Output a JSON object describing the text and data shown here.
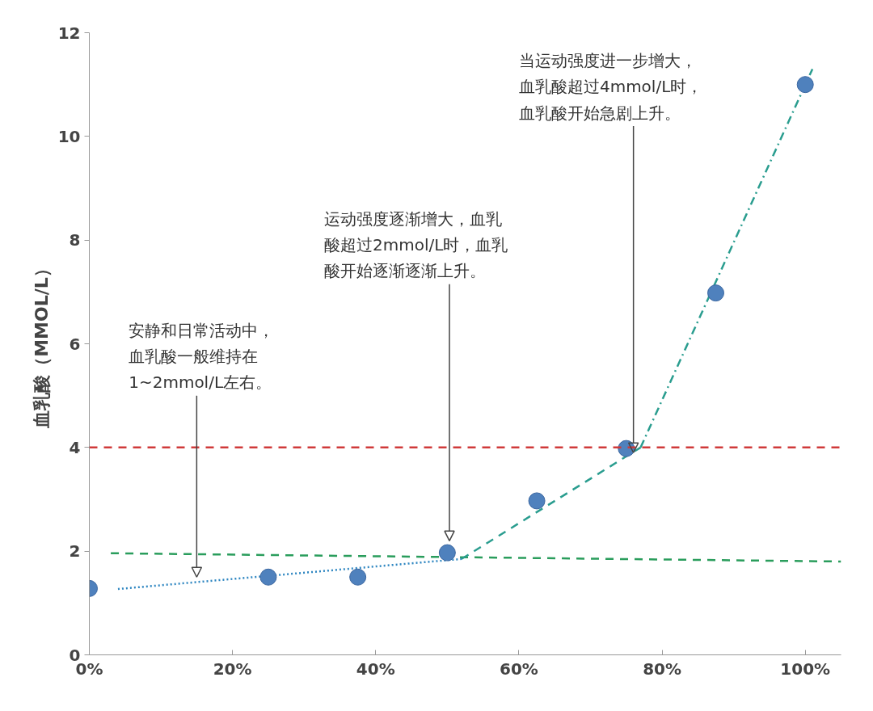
{
  "chart_data": {
    "type": "scatter",
    "ylabel": "血乳酸（MMOL/L）",
    "x": [
      0,
      25,
      37.5,
      50,
      62.5,
      75,
      87.5,
      100
    ],
    "series": [
      {
        "marker": "circle",
        "color": "#4f81bd",
        "values": [
          1.28,
          1.5,
          1.5,
          1.97,
          2.97,
          3.98,
          6.98,
          11.0
        ]
      },
      {
        "type": "line",
        "color": "#2a9d5c",
        "line_style": "dashed",
        "x": [
          3,
          105
        ],
        "values": [
          1.96,
          1.8
        ]
      },
      {
        "type": "line",
        "color": "#2e86c1",
        "line_style": "dotted",
        "x": [
          4,
          52
        ],
        "values": [
          1.27,
          1.85
        ]
      },
      {
        "type": "line",
        "color": "#2a9d8f",
        "line_style": "dashed",
        "x": [
          52,
          77
        ],
        "values": [
          1.85,
          4.0
        ]
      },
      {
        "type": "line",
        "color": "#2a9d8f",
        "line_style": "dashdot",
        "x": [
          77,
          101
        ],
        "values": [
          4.0,
          11.3
        ]
      }
    ],
    "ref_lines": [
      {
        "axis": "y",
        "value": 4,
        "color": "#d03a3a",
        "line_style": "dashed"
      }
    ],
    "annotations": [
      {
        "text": "安静和日常活动中，血乳酸一般维持在1~2mmol/L左右。",
        "x": 15,
        "y": 1.5
      },
      {
        "text": "运动强度逐渐增大，血乳酸超过2mmol/L时，血乳酸开始逐渐逐渐上升。",
        "x": 50.3,
        "y": 2.2
      },
      {
        "text": "当运动强度进一步增大，血乳酸超过4mmol/L时，血乳酸开始急剧上升。",
        "x": 76,
        "y": 3.9
      }
    ],
    "xlim": [
      0,
      105
    ],
    "ylim": [
      0,
      12
    ],
    "xticks": [
      {
        "value": 0,
        "label": "0%"
      },
      {
        "value": 20,
        "label": "20%"
      },
      {
        "value": 40,
        "label": "40%"
      },
      {
        "value": 60,
        "label": "60%"
      },
      {
        "value": 80,
        "label": "80%"
      },
      {
        "value": 100,
        "label": "100%"
      }
    ],
    "yticks": [
      0,
      2,
      4,
      6,
      8,
      10,
      12
    ],
    "grid": false
  }
}
